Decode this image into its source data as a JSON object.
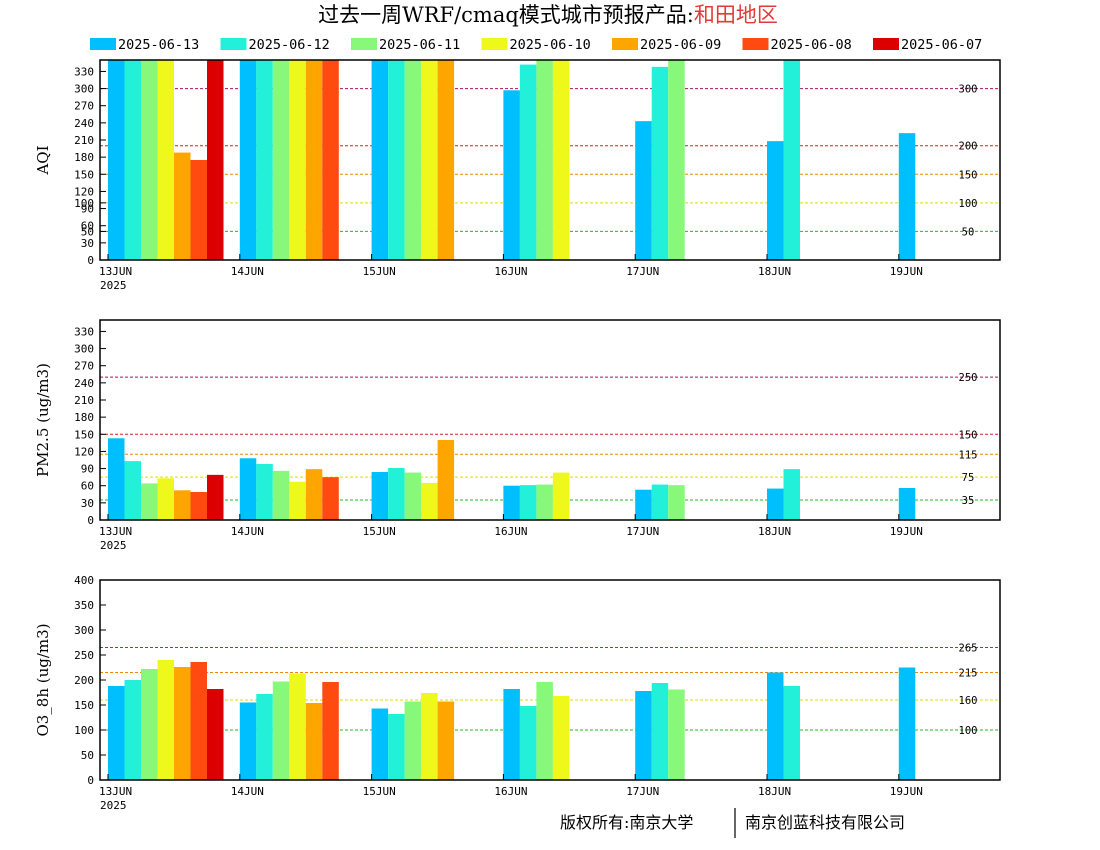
{
  "title": {
    "main": "过去一周WRF/cmaq模式城市预报产品:",
    "region": "和田地区",
    "region_color": "#e23a3a"
  },
  "footer": {
    "left": "版权所有:南京大学",
    "right": "南京创蓝科技有限公司"
  },
  "legend": [
    {
      "label": "2025-06-13",
      "color": "#00bfff"
    },
    {
      "label": "2025-06-12",
      "color": "#22f0d8"
    },
    {
      "label": "2025-06-11",
      "color": "#88f87a"
    },
    {
      "label": "2025-06-10",
      "color": "#eef81a"
    },
    {
      "label": "2025-06-09",
      "color": "#ffa500"
    },
    {
      "label": "2025-06-08",
      "color": "#ff4a10"
    },
    {
      "label": "2025-06-07",
      "color": "#dd0000"
    }
  ],
  "chart_data": [
    {
      "type": "bar",
      "name": "AQI",
      "ylabel": "AQI",
      "ylim": [
        0,
        350
      ],
      "yticks": [
        0,
        30,
        50,
        60,
        90,
        100,
        120,
        150,
        180,
        210,
        240,
        270,
        300,
        330
      ],
      "categories": [
        "13JUN",
        "14JUN",
        "15JUN",
        "16JUN",
        "17JUN",
        "18JUN",
        "19JUN"
      ],
      "year_label": "2025",
      "thresholds": [
        {
          "value": 300,
          "label": "300",
          "color": "#aa1166"
        },
        {
          "value": 200,
          "label": "200",
          "color": "#cc2222"
        },
        {
          "value": 150,
          "label": "150",
          "color": "#ee8800"
        },
        {
          "value": 100,
          "label": "100",
          "color": "#dddd00"
        },
        {
          "value": 50,
          "label": "50",
          "color": "#22bb22"
        }
      ],
      "series": [
        {
          "name": "2025-06-13",
          "values": [
            350,
            350,
            350,
            297,
            243,
            208,
            222
          ]
        },
        {
          "name": "2025-06-12",
          "values": [
            350,
            350,
            350,
            342,
            338,
            350,
            null
          ]
        },
        {
          "name": "2025-06-11",
          "values": [
            350,
            350,
            350,
            350,
            350,
            null,
            null
          ]
        },
        {
          "name": "2025-06-10",
          "values": [
            350,
            350,
            350,
            350,
            null,
            null,
            null
          ]
        },
        {
          "name": "2025-06-09",
          "values": [
            188,
            350,
            350,
            null,
            null,
            null,
            null
          ]
        },
        {
          "name": "2025-06-08",
          "values": [
            175,
            350,
            null,
            null,
            null,
            null,
            null
          ]
        },
        {
          "name": "2025-06-07",
          "values": [
            350,
            null,
            null,
            null,
            null,
            null,
            null
          ]
        }
      ]
    },
    {
      "type": "bar",
      "name": "PM2.5",
      "ylabel": "PM2.5 (ug/m3)",
      "ylim": [
        0,
        350
      ],
      "yticks": [
        0,
        30,
        60,
        90,
        120,
        150,
        180,
        210,
        240,
        270,
        300,
        330
      ],
      "categories": [
        "13JUN",
        "14JUN",
        "15JUN",
        "16JUN",
        "17JUN",
        "18JUN",
        "19JUN"
      ],
      "year_label": "2025",
      "thresholds": [
        {
          "value": 250,
          "label": "250",
          "color": "#aa1166"
        },
        {
          "value": 150,
          "label": "150",
          "color": "#cc2222"
        },
        {
          "value": 115,
          "label": "115",
          "color": "#ee8800"
        },
        {
          "value": 75,
          "label": "75",
          "color": "#dddd00"
        },
        {
          "value": 35,
          "label": "35",
          "color": "#22bb22"
        }
      ],
      "series": [
        {
          "name": "2025-06-13",
          "values": [
            143,
            108,
            84,
            60,
            53,
            55,
            56
          ]
        },
        {
          "name": "2025-06-12",
          "values": [
            103,
            98,
            91,
            61,
            62,
            89,
            null
          ]
        },
        {
          "name": "2025-06-11",
          "values": [
            64,
            86,
            83,
            62,
            61,
            null,
            null
          ]
        },
        {
          "name": "2025-06-10",
          "values": [
            73,
            67,
            65,
            83,
            null,
            null,
            null
          ]
        },
        {
          "name": "2025-06-09",
          "values": [
            52,
            89,
            140,
            null,
            null,
            null,
            null
          ]
        },
        {
          "name": "2025-06-08",
          "values": [
            49,
            75,
            null,
            null,
            null,
            null,
            null
          ]
        },
        {
          "name": "2025-06-07",
          "values": [
            79,
            null,
            null,
            null,
            null,
            null,
            null
          ]
        }
      ]
    },
    {
      "type": "bar",
      "name": "O3_8h",
      "ylabel": "O3_8h (ug/m3)",
      "ylim": [
        0,
        400
      ],
      "yticks": [
        0,
        50,
        100,
        150,
        200,
        250,
        300,
        350,
        400
      ],
      "categories": [
        "13JUN",
        "14JUN",
        "15JUN",
        "16JUN",
        "17JUN",
        "18JUN",
        "19JUN"
      ],
      "year_label": "2025",
      "thresholds": [
        {
          "value": 265,
          "label": "265",
          "color": "#cc2222"
        },
        {
          "value": 215,
          "label": "215",
          "color": "#ee8800"
        },
        {
          "value": 160,
          "label": "160",
          "color": "#dddd00"
        },
        {
          "value": 100,
          "label": "100",
          "color": "#22bb22"
        }
      ],
      "series": [
        {
          "name": "2025-06-13",
          "values": [
            188,
            155,
            143,
            182,
            178,
            215,
            225
          ]
        },
        {
          "name": "2025-06-12",
          "values": [
            200,
            172,
            132,
            148,
            194,
            188,
            null
          ]
        },
        {
          "name": "2025-06-11",
          "values": [
            222,
            197,
            157,
            196,
            181,
            null,
            null
          ]
        },
        {
          "name": "2025-06-10",
          "values": [
            240,
            213,
            174,
            168,
            null,
            null,
            null
          ]
        },
        {
          "name": "2025-06-09",
          "values": [
            226,
            154,
            157,
            null,
            null,
            null,
            null
          ]
        },
        {
          "name": "2025-06-08",
          "values": [
            236,
            196,
            null,
            null,
            null,
            null,
            null
          ]
        },
        {
          "name": "2025-06-07",
          "values": [
            182,
            null,
            null,
            null,
            null,
            null,
            null
          ]
        }
      ]
    }
  ]
}
